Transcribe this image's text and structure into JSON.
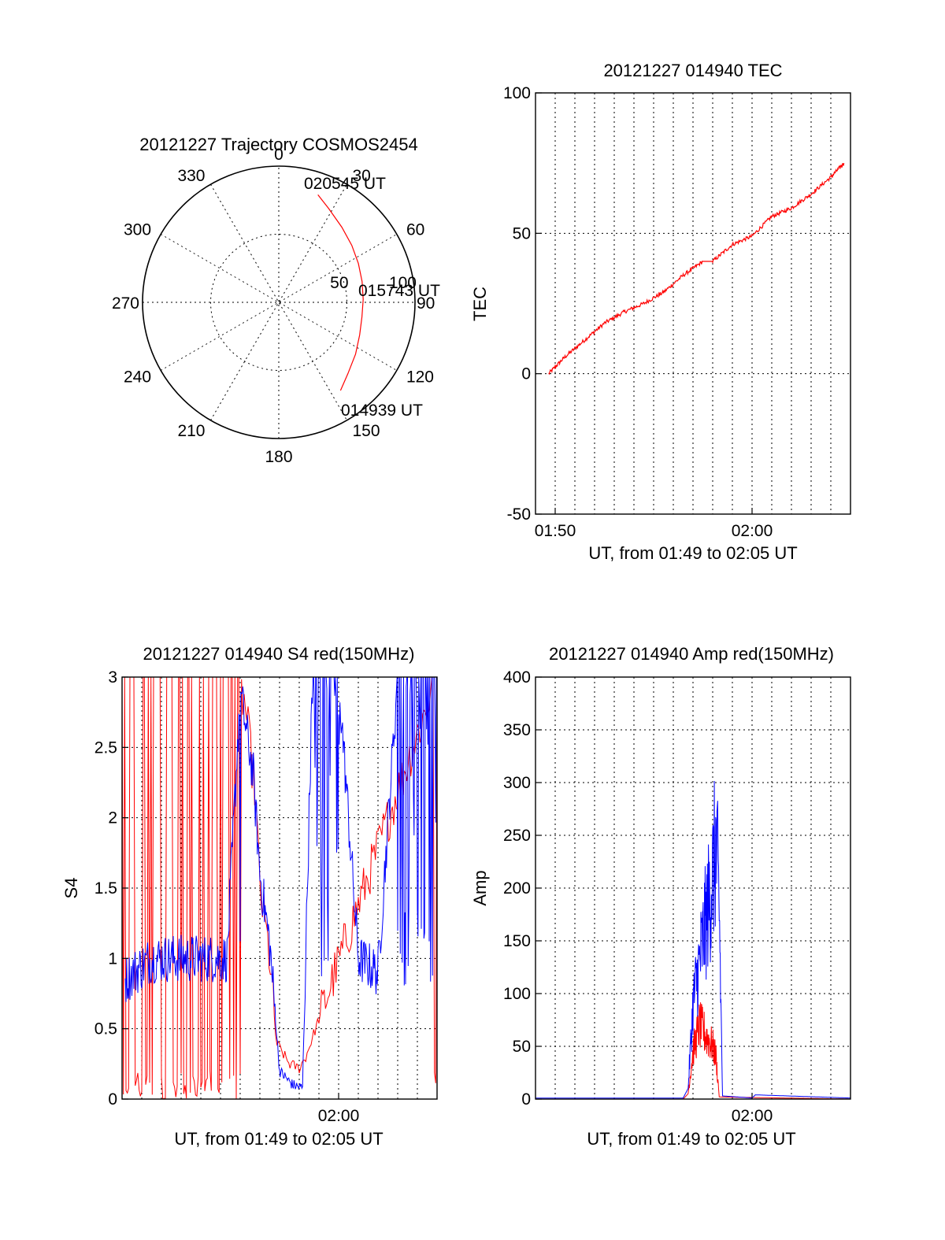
{
  "chart_data": [
    {
      "type": "polar",
      "title": "20121227 Trajectory COSMOS2454",
      "angle_labels": [
        "0",
        "30",
        "60",
        "90",
        "120",
        "150",
        "180",
        "210",
        "240",
        "270",
        "300",
        "330"
      ],
      "radial_labels": [
        "50",
        "100"
      ],
      "series": [
        {
          "color": "#ff0000",
          "points": [
            {
              "az": 20,
              "zen": 84
            },
            {
              "az": 28,
              "zen": 78
            },
            {
              "az": 40,
              "zen": 72
            },
            {
              "az": 52,
              "zen": 68
            },
            {
              "az": 64,
              "zen": 65
            },
            {
              "az": 76,
              "zen": 63
            },
            {
              "az": 88,
              "zen": 62
            },
            {
              "az": 100,
              "zen": 62
            },
            {
              "az": 112,
              "zen": 64
            },
            {
              "az": 124,
              "zen": 68
            },
            {
              "az": 136,
              "zen": 73
            },
            {
              "az": 145,
              "zen": 79
            }
          ]
        }
      ],
      "annotations": [
        "020545 UT",
        "015743 UT",
        "014939 UT"
      ]
    },
    {
      "type": "line",
      "title": "20121227 014940 TEC",
      "xlabel": "UT, from 01:49 to 02:05 UT",
      "ylabel": "TEC",
      "xlim": [
        "01:49",
        "02:05"
      ],
      "ylim": [
        -50,
        100
      ],
      "ytick_labels": [
        "100",
        "50",
        "0",
        "-50"
      ],
      "xtick_labels": [
        "01:50",
        "02:00"
      ],
      "grid": true,
      "series": [
        {
          "color": "#ff0000",
          "x": [
            "01:49:40",
            "01:50:30",
            "01:51:30",
            "01:52:30",
            "01:53:30",
            "01:54:30",
            "01:55:30",
            "01:56:30",
            "01:57:30",
            "01:58:00",
            "01:59:00",
            "02:00:00",
            "02:01:00",
            "02:02:00",
            "02:03:00",
            "02:04:00",
            "02:04:40"
          ],
          "y": [
            0,
            6,
            12,
            18,
            22,
            25,
            29,
            35,
            40,
            40,
            46,
            49,
            56,
            59,
            64,
            70,
            75
          ]
        }
      ]
    },
    {
      "type": "line",
      "title": "20121227 014940 S4 red(150MHz)",
      "xlabel": "UT, from 01:49 to 02:05 UT",
      "ylabel": "S4",
      "xlim": [
        "01:49",
        "02:05"
      ],
      "ylim": [
        0,
        3
      ],
      "ytick_labels": [
        "3",
        "2.5",
        "2",
        "1.5",
        "1",
        "0.5",
        "0"
      ],
      "xtick_labels": [
        "02:00"
      ],
      "grid": true,
      "series": [
        {
          "color": "#ff0000",
          "x": [
            "01:49",
            "01:54:45",
            "01:55:15",
            "01:55:45",
            "01:56:00",
            "01:56:30",
            "01:56:50",
            "01:57:30",
            "01:58:00",
            "01:58:20",
            "02:05"
          ],
          "y": [
            3,
            3,
            2.8,
            2.2,
            1.5,
            1.0,
            0.4,
            0.25,
            0.22,
            0.3,
            3
          ]
        },
        {
          "color": "#0000ff",
          "x": [
            "01:49:10",
            "01:50:30",
            "01:52:00",
            "01:54:20",
            "01:55:00",
            "01:55:40",
            "01:56:00",
            "01:56:30",
            "01:57:00",
            "01:57:40",
            "01:58:10",
            "01:58:40",
            "02:00:00",
            "02:01:00",
            "02:02:00",
            "02:03:00",
            "02:05:00"
          ],
          "y": [
            0.85,
            1.0,
            1.0,
            1.0,
            2.9,
            2.3,
            1.6,
            1.1,
            0.2,
            0.1,
            0.08,
            3,
            3,
            1.0,
            0.9,
            3,
            3
          ]
        }
      ]
    },
    {
      "type": "line",
      "title": "20121227 014940 Amp red(150MHz)",
      "xlabel": "UT, from 01:49 to 02:05 UT",
      "ylabel": "Amp",
      "xlim": [
        "01:49",
        "02:05"
      ],
      "ylim": [
        0,
        400
      ],
      "ytick_labels": [
        "400",
        "350",
        "300",
        "250",
        "200",
        "150",
        "100",
        "50",
        "0"
      ],
      "xtick_labels": [
        "02:00"
      ],
      "grid": true,
      "series": [
        {
          "color": "#ff0000",
          "x": [
            "01:49:00",
            "01:56:30",
            "01:56:45",
            "01:57:00",
            "01:57:20",
            "01:57:40",
            "01:58:00",
            "01:58:10",
            "01:58:20",
            "02:05:00"
          ],
          "y": [
            0,
            0,
            5,
            45,
            70,
            60,
            50,
            40,
            2,
            0
          ]
        },
        {
          "color": "#0000ff",
          "x": [
            "01:49:00",
            "01:56:30",
            "01:56:45",
            "01:57:00",
            "01:57:20",
            "01:57:40",
            "01:58:00",
            "01:58:10",
            "01:58:20",
            "01:58:30",
            "02:00:00",
            "02:00:10",
            "02:05:00"
          ],
          "y": [
            1,
            1,
            10,
            90,
            130,
            170,
            210,
            240,
            180,
            3,
            1,
            4,
            1
          ]
        }
      ]
    }
  ]
}
